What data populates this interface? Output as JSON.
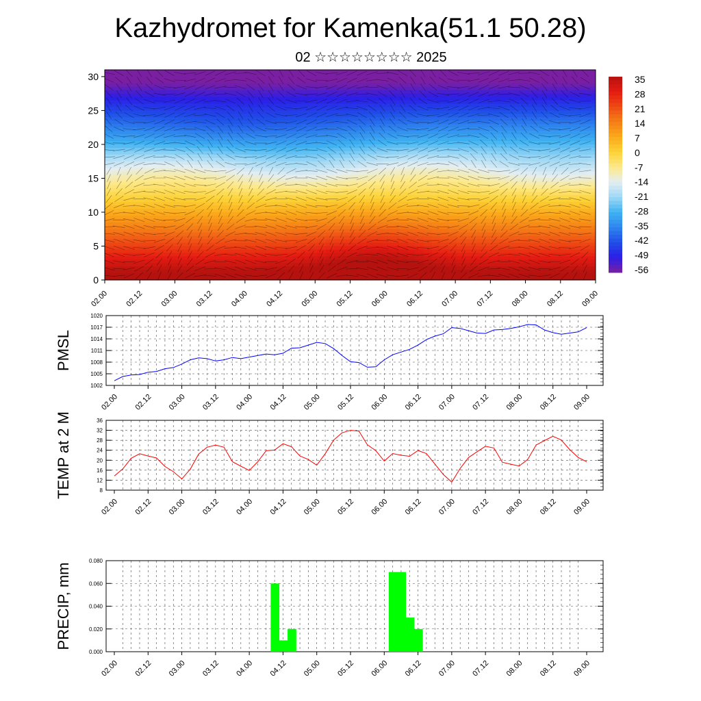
{
  "title": "Kazhydromet for Kamenka(51.1 50.28)",
  "subtitle": "02 ☆☆☆☆☆☆☆☆ 2025",
  "time_labels": [
    "02.00",
    "02.12",
    "03.00",
    "03.12",
    "04.00",
    "04.12",
    "05.00",
    "05.12",
    "06.00",
    "06.12",
    "07.00",
    "07.12",
    "08.00",
    "08.12",
    "09.00"
  ],
  "chart_data": [
    {
      "type": "heatmap",
      "x_labels": [
        "02.00",
        "02.12",
        "03.00",
        "03.12",
        "04.00",
        "04.12",
        "05.00",
        "05.12",
        "06.00",
        "06.12",
        "07.00",
        "07.12",
        "08.00",
        "08.12",
        "09.00"
      ],
      "y_ticks": [
        "0",
        "5",
        "10",
        "15",
        "20",
        "25",
        "30"
      ],
      "ylim": [
        0,
        31
      ],
      "colorbar_labels": [
        "35",
        "28",
        "21",
        "14",
        "7",
        "0",
        "-7",
        "-14",
        "-21",
        "-28",
        "-35",
        "-42",
        "-49",
        "-56"
      ],
      "colorscale": [
        "#7b1fa2",
        "#2b1ee6",
        "#1f4fe8",
        "#2f86ee",
        "#3fb3f2",
        "#9fd8f5",
        "#e4eef2",
        "#fde98a",
        "#fcd236",
        "#fba91b",
        "#f57e16",
        "#ee4a14",
        "#e41b12",
        "#b5120f"
      ],
      "note_overlay": "wind barbs and contour lines"
    },
    {
      "type": "line",
      "ylabel": "PMSL",
      "y_ticks": [
        "1002",
        "1005",
        "1008",
        "1011",
        "1014",
        "1017",
        "1020"
      ],
      "ylim": [
        1002,
        1020
      ],
      "x_labels": [
        "02.00",
        "02.12",
        "03.00",
        "03.12",
        "04.00",
        "04.12",
        "05.00",
        "05.12",
        "06.00",
        "06.12",
        "07.00",
        "07.12",
        "08.00",
        "08.12",
        "09.00"
      ],
      "series": [
        {
          "color": "#0000ff",
          "values": [
            1003.2,
            1004.3,
            1004.7,
            1004.8,
            1005.4,
            1005.6,
            1006.3,
            1006.6,
            1007.5,
            1008.6,
            1009.1,
            1008.9,
            1008.3,
            1008.6,
            1009.2,
            1008.9,
            1009.3,
            1009.7,
            1010.1,
            1009.9,
            1010.3,
            1011.6,
            1011.7,
            1012.4,
            1013.1,
            1012.8,
            1011.5,
            1009.7,
            1008.1,
            1007.9,
            1006.7,
            1006.8,
            1008.6,
            1009.9,
            1010.6,
            1011.3,
            1012.4,
            1013.8,
            1014.7,
            1015.3,
            1016.9,
            1016.7,
            1016.1,
            1015.5,
            1015.4,
            1016.3,
            1016.4,
            1016.7,
            1017.1,
            1017.7,
            1017.6,
            1016.3,
            1015.6,
            1015.2,
            1015.5,
            1015.8,
            1016.9
          ]
        }
      ]
    },
    {
      "type": "line",
      "ylabel": "TEMP at 2 M",
      "y_ticks": [
        "8",
        "12",
        "16",
        "20",
        "24",
        "28",
        "32",
        "36"
      ],
      "ylim": [
        8,
        36
      ],
      "x_labels": [
        "02.00",
        "02.12",
        "03.00",
        "03.12",
        "04.00",
        "04.12",
        "05.00",
        "05.12",
        "06.00",
        "06.12",
        "07.00",
        "07.12",
        "08.00",
        "08.12",
        "09.00"
      ],
      "series": [
        {
          "color": "#ff0000",
          "values": [
            13.7,
            16.5,
            20.8,
            22.6,
            21.7,
            20.9,
            17.5,
            15.4,
            12.5,
            16.4,
            22.5,
            25.2,
            26.1,
            25.2,
            19.4,
            17.6,
            15.9,
            19.4,
            23.8,
            24.1,
            26.6,
            25.4,
            21.7,
            20.3,
            18.0,
            22.6,
            28.1,
            31.0,
            32.0,
            31.7,
            26.2,
            23.8,
            19.7,
            22.7,
            22.0,
            21.6,
            23.9,
            22.7,
            18.5,
            14.3,
            11.2,
            16.7,
            21.1,
            23.4,
            25.6,
            24.9,
            19.2,
            18.4,
            17.7,
            20.3,
            26.1,
            27.9,
            29.6,
            28.1,
            24.2,
            21.1,
            19.4
          ]
        }
      ]
    },
    {
      "type": "bar",
      "ylabel": "PRECIP, mm",
      "y_ticks": [
        "0.000",
        "0.020",
        "0.040",
        "0.060",
        "0.080"
      ],
      "ylim": [
        0,
        0.08
      ],
      "x_labels": [
        "02.00",
        "02.12",
        "03.00",
        "03.12",
        "04.00",
        "04.12",
        "05.00",
        "05.12",
        "06.00",
        "06.12",
        "07.00",
        "07.12",
        "08.00",
        "08.12",
        "09.00"
      ],
      "bar_color": "#00ff00",
      "bars": [
        {
          "time_step": 19,
          "value": 0.06
        },
        {
          "time_step": 20,
          "value": 0.01
        },
        {
          "time_step": 21,
          "value": 0.02
        },
        {
          "time_step": 33,
          "value": 0.07
        },
        {
          "time_step": 34,
          "value": 0.07
        },
        {
          "time_step": 35,
          "value": 0.03
        },
        {
          "time_step": 36,
          "value": 0.02
        }
      ]
    }
  ]
}
